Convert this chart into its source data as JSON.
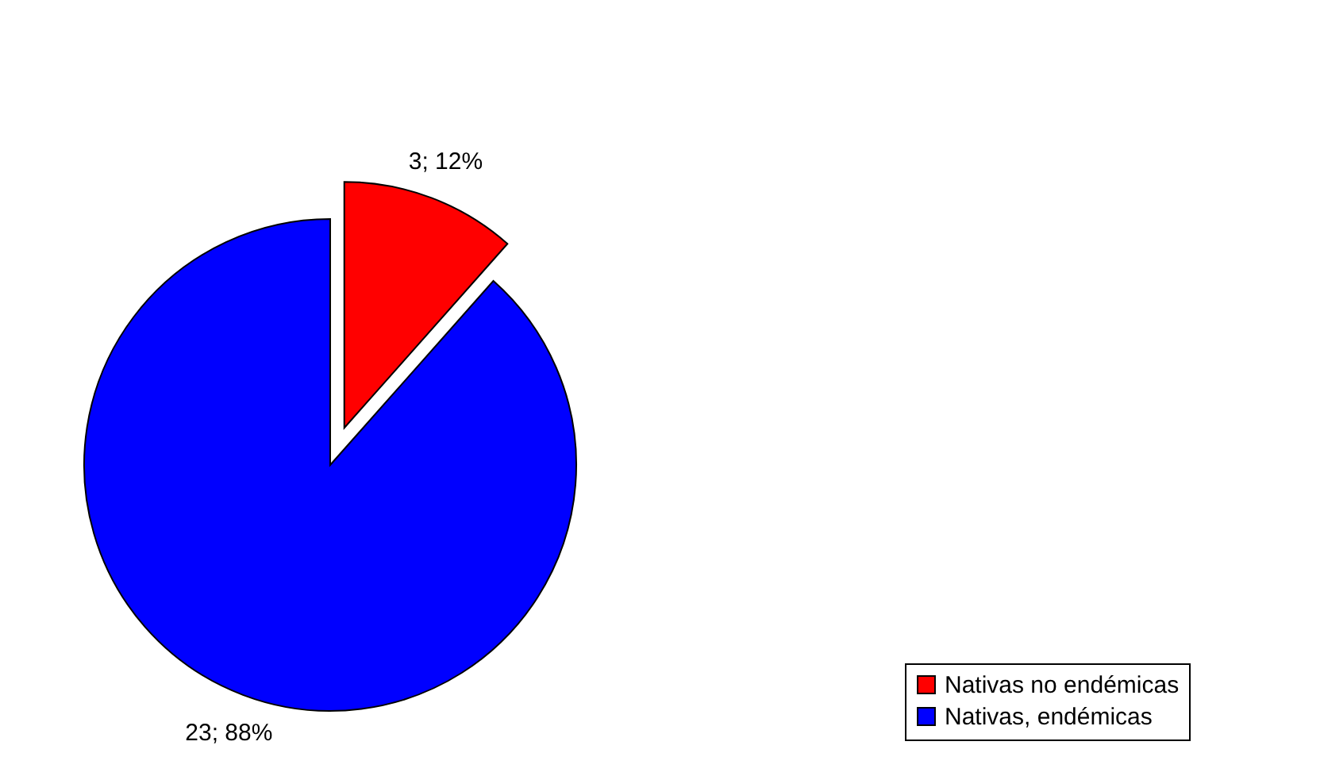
{
  "chart_data": {
    "type": "pie",
    "categories": [
      "Nativas no endémicas",
      "Nativas, endémicas"
    ],
    "values": [
      3,
      23
    ],
    "colors": [
      "#ff0000",
      "#0000ff"
    ],
    "value_labels": [
      "3; 12%",
      "23; 88%"
    ],
    "legend": "bottom right"
  }
}
